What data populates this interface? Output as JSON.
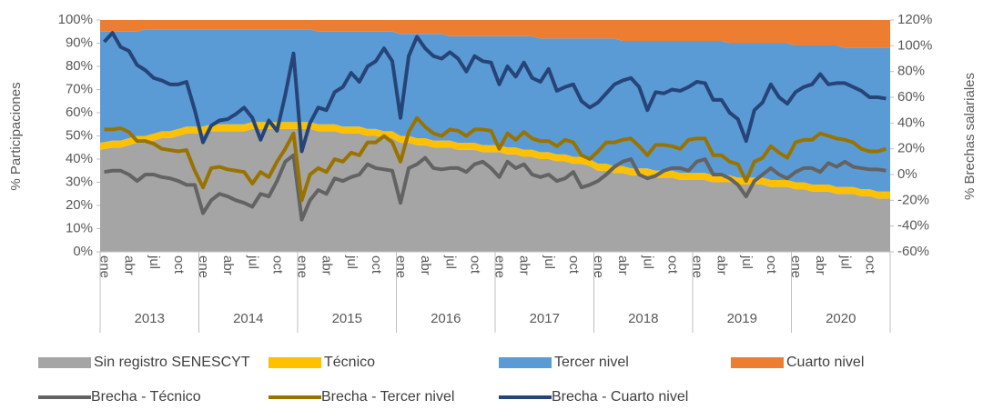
{
  "chart_data": {
    "type": "area",
    "y_label": "% Participaciones",
    "y2_label": "% Brechas salariales",
    "categories": [
      "ene",
      null,
      null,
      "abr",
      null,
      null,
      "jul",
      null,
      null,
      "oct",
      null,
      null,
      "ene",
      null,
      null,
      "abr",
      null,
      null,
      "jul",
      null,
      null,
      "oct",
      null,
      null,
      "ene",
      null,
      null,
      "abr",
      null,
      null,
      "jul",
      null,
      null,
      "oct",
      null,
      null,
      "ene",
      null,
      null,
      "abr",
      null,
      null,
      "jul",
      null,
      null,
      "oct",
      null,
      null,
      "ene",
      null,
      null,
      "abr",
      null,
      null,
      "jul",
      null,
      null,
      "oct",
      null,
      null,
      "ene",
      null,
      null,
      "abr",
      null,
      null,
      "jul",
      null,
      null,
      "oct",
      null,
      null,
      "ene",
      null,
      null,
      "abr",
      null,
      null,
      "jul",
      null,
      null,
      "oct",
      null,
      null,
      "ene",
      null,
      null,
      "abr",
      null,
      null,
      "jul",
      null,
      null,
      "oct",
      null,
      null
    ],
    "groups": [
      "2013",
      "2014",
      "2015",
      "2016",
      "2017",
      "2018",
      "2019",
      "2020"
    ],
    "ylim": [
      0,
      100
    ],
    "yticks": [
      {
        "value": 0,
        "label": "0%"
      },
      {
        "value": 10,
        "label": "10%"
      },
      {
        "value": 20,
        "label": "20%"
      },
      {
        "value": 30,
        "label": "30%"
      },
      {
        "value": 40,
        "label": "40%"
      },
      {
        "value": 50,
        "label": "50%"
      },
      {
        "value": 60,
        "label": "60%"
      },
      {
        "value": 70,
        "label": "70%"
      },
      {
        "value": 80,
        "label": "80%"
      },
      {
        "value": 90,
        "label": "90%"
      },
      {
        "value": 100,
        "label": "100%"
      }
    ],
    "y2lim": [
      -60,
      120
    ],
    "y2ticks": [
      {
        "value": -60,
        "label": "-60%"
      },
      {
        "value": -40,
        "label": "-40%"
      },
      {
        "value": -20,
        "label": "-20%"
      },
      {
        "value": 0,
        "label": "0%"
      },
      {
        "value": 20,
        "label": "20%"
      },
      {
        "value": 40,
        "label": "40%"
      },
      {
        "value": 60,
        "label": "60%"
      },
      {
        "value": 80,
        "label": "80%"
      },
      {
        "value": 100,
        "label": "100%"
      },
      {
        "value": 120,
        "label": "120%"
      }
    ],
    "series": [
      {
        "name": "Sin registro SENESCYT",
        "color": "#a5a5a5",
        "values": [
          44,
          45,
          45,
          46,
          47,
          47,
          48,
          49,
          49,
          50,
          51,
          51,
          51,
          52,
          52,
          52,
          52,
          52,
          53,
          53,
          53,
          53,
          53,
          53,
          53,
          53,
          52,
          52,
          52,
          51,
          51,
          51,
          50,
          50,
          49,
          49,
          47,
          47,
          46,
          46,
          45,
          45,
          45,
          44,
          44,
          44,
          43,
          43,
          43,
          42,
          42,
          41,
          41,
          40,
          40,
          39,
          39,
          38,
          38,
          37,
          35,
          35,
          34,
          34,
          33,
          33,
          33,
          32,
          32,
          32,
          31,
          31,
          31,
          31,
          30,
          30,
          30,
          29,
          29,
          29,
          29,
          28,
          28,
          28,
          27,
          27,
          26,
          26,
          26,
          25,
          25,
          25,
          24,
          24,
          23,
          23
        ]
      },
      {
        "name": "Técnico",
        "color": "#ffc000",
        "values": [
          3,
          3,
          3,
          3,
          3,
          3,
          3,
          3,
          3,
          3,
          3,
          3,
          3,
          3,
          3,
          3,
          3,
          3,
          3,
          3,
          3,
          3,
          3,
          3,
          3,
          3,
          3,
          3,
          3,
          3,
          3,
          3,
          3,
          3,
          3,
          3,
          3,
          3,
          3,
          3,
          3,
          3,
          3,
          3,
          3,
          3,
          3,
          3,
          3,
          3,
          3,
          3,
          3,
          3,
          3,
          3,
          3,
          3,
          3,
          3,
          3,
          3,
          3,
          3,
          3,
          3,
          3,
          3,
          3,
          3,
          3,
          3,
          3,
          3,
          3,
          3,
          3,
          3,
          3,
          3,
          3,
          3,
          3,
          3,
          3,
          3,
          3,
          3,
          3,
          3,
          3,
          3,
          3,
          3,
          3,
          3
        ]
      },
      {
        "name": "Tercer nivel",
        "color": "#5b9bd5",
        "values": [
          48,
          47,
          47,
          46,
          45,
          46,
          45,
          44,
          44,
          43,
          42,
          42,
          42,
          41,
          41,
          41,
          41,
          41,
          40,
          40,
          40,
          40,
          40,
          40,
          40,
          40,
          40,
          40,
          40,
          41,
          41,
          41,
          42,
          42,
          43,
          43,
          44,
          44,
          45,
          45,
          46,
          46,
          45,
          46,
          46,
          46,
          47,
          47,
          47,
          48,
          48,
          49,
          49,
          49,
          49,
          50,
          50,
          51,
          51,
          52,
          54,
          54,
          55,
          54,
          55,
          55,
          55,
          56,
          56,
          56,
          57,
          57,
          57,
          57,
          58,
          58,
          57,
          58,
          58,
          58,
          58,
          59,
          59,
          59,
          59,
          59,
          60,
          60,
          60,
          61,
          60,
          60,
          61,
          61,
          62,
          62
        ]
      },
      {
        "name": "Cuarto nivel",
        "color": "#ed7d31",
        "values": [
          5,
          5,
          5,
          5,
          5,
          4,
          4,
          4,
          4,
          4,
          4,
          4,
          4,
          4,
          4,
          4,
          4,
          4,
          4,
          4,
          4,
          4,
          4,
          4,
          4,
          4,
          5,
          5,
          5,
          5,
          5,
          5,
          5,
          5,
          5,
          5,
          6,
          6,
          6,
          6,
          6,
          6,
          7,
          7,
          7,
          7,
          7,
          7,
          7,
          7,
          7,
          7,
          7,
          8,
          8,
          8,
          8,
          8,
          8,
          8,
          8,
          8,
          8,
          9,
          9,
          9,
          9,
          9,
          9,
          9,
          9,
          9,
          9,
          9,
          9,
          9,
          10,
          10,
          10,
          10,
          10,
          10,
          10,
          10,
          11,
          11,
          11,
          11,
          11,
          11,
          12,
          12,
          12,
          12,
          12,
          12
        ]
      },
      {
        "name": "Brecha - Técnico",
        "type": "line",
        "axis": "y2",
        "color": "#636363",
        "values": [
          2,
          3,
          3,
          0,
          -5,
          0,
          0,
          -2,
          -3,
          -5,
          -8,
          -8,
          -30,
          -20,
          -15,
          -17,
          -20,
          -22,
          -25,
          -15,
          -17,
          -5,
          10,
          15,
          -35,
          -20,
          -12,
          -15,
          -3,
          -5,
          -2,
          0,
          8,
          5,
          4,
          3,
          -22,
          5,
          8,
          13,
          5,
          4,
          5,
          5,
          2,
          8,
          10,
          5,
          -2,
          10,
          5,
          8,
          0,
          -2,
          0,
          -5,
          -3,
          2,
          -10,
          -8,
          -5,
          0,
          6,
          10,
          12,
          0,
          -3,
          -1,
          3,
          5,
          5,
          3,
          10,
          12,
          0,
          0,
          -3,
          -8,
          -17,
          -5,
          0,
          5,
          0,
          -3,
          2,
          5,
          5,
          2,
          9,
          6,
          10,
          6,
          5,
          4,
          4,
          3
        ]
      },
      {
        "name": "Brecha - Tercer nivel",
        "type": "line",
        "axis": "y2",
        "color": "#997300",
        "values": [
          35,
          35,
          36,
          33,
          26,
          26,
          24,
          20,
          19,
          18,
          19,
          3,
          -10,
          5,
          6,
          4,
          3,
          2,
          -7,
          2,
          -2,
          10,
          20,
          32,
          -20,
          0,
          5,
          2,
          12,
          10,
          17,
          15,
          25,
          25,
          30,
          25,
          10,
          33,
          44,
          37,
          32,
          30,
          35,
          34,
          30,
          35,
          35,
          34,
          20,
          32,
          27,
          33,
          28,
          26,
          26,
          22,
          27,
          25,
          15,
          12,
          18,
          25,
          25,
          27,
          28,
          22,
          15,
          23,
          23,
          22,
          20,
          27,
          28,
          28,
          15,
          15,
          10,
          8,
          -5,
          10,
          13,
          22,
          17,
          13,
          25,
          27,
          27,
          32,
          30,
          28,
          27,
          25,
          20,
          18,
          18,
          20
        ]
      },
      {
        "name": "Brecha - Cuarto nivel",
        "type": "line",
        "axis": "y2",
        "color": "#264478",
        "values": [
          103,
          110,
          99,
          96,
          85,
          81,
          75,
          73,
          70,
          70,
          72,
          50,
          25,
          38,
          42,
          43,
          47,
          52,
          44,
          27,
          42,
          34,
          62,
          94,
          18,
          40,
          52,
          50,
          64,
          68,
          79,
          72,
          84,
          88,
          98,
          88,
          44,
          92,
          107,
          98,
          92,
          90,
          95,
          90,
          80,
          92,
          88,
          87,
          70,
          84,
          76,
          87,
          75,
          72,
          82,
          65,
          68,
          70,
          57,
          52,
          56,
          63,
          70,
          73,
          75,
          68,
          50,
          64,
          63,
          66,
          65,
          68,
          72,
          71,
          58,
          58,
          48,
          43,
          26,
          50,
          56,
          70,
          60,
          55,
          64,
          68,
          70,
          78,
          70,
          71,
          71,
          68,
          65,
          60,
          60,
          59
        ]
      }
    ]
  }
}
